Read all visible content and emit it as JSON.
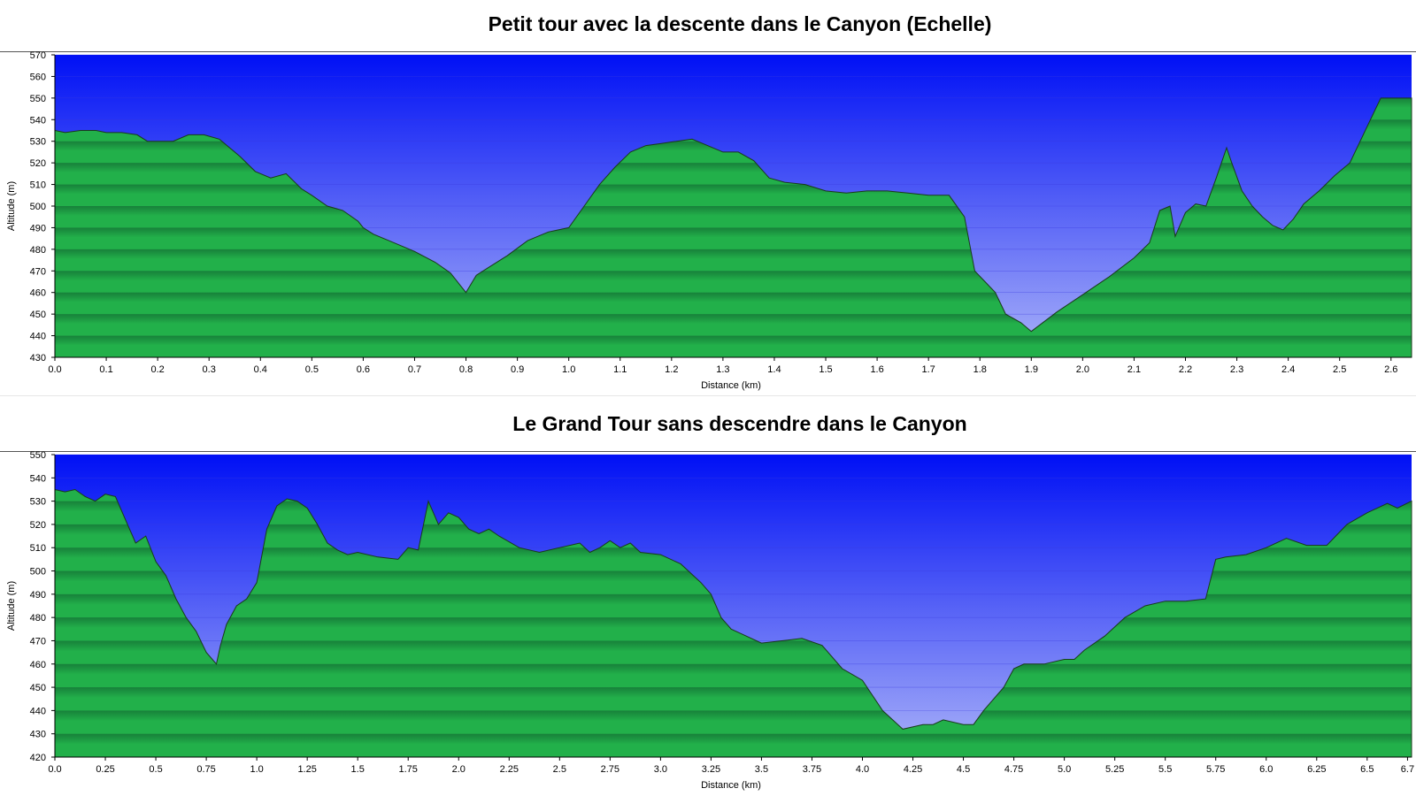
{
  "chart_data": [
    {
      "type": "area",
      "title": "Petit tour avec la descente dans le Canyon (Echelle)",
      "xlabel": "Distance    (km)",
      "ylabel": "Altitude (m)",
      "xlim": [
        0,
        2.64
      ],
      "ylim": [
        430,
        570
      ],
      "xticks": [
        "0.0",
        "0.1",
        "0.2",
        "0.3",
        "0.4",
        "0.5",
        "0.6",
        "0.7",
        "0.8",
        "0.9",
        "1.0",
        "1.1",
        "1.2",
        "1.3",
        "1.4",
        "1.5",
        "1.6",
        "1.7",
        "1.8",
        "1.9",
        "2.0",
        "2.1",
        "2.2",
        "2.3",
        "2.4",
        "2.5",
        "2.6"
      ],
      "yticks": [
        430,
        440,
        450,
        460,
        470,
        480,
        490,
        500,
        510,
        520,
        530,
        540,
        550,
        560,
        570
      ],
      "grid": true,
      "colors": {
        "sky_top": "#0010f5",
        "sky_bottom": "#aab2f8",
        "terrain": "#22b04a",
        "terrain_band": "#17803a"
      },
      "series": [
        {
          "x": [
            0,
            0.02,
            0.05,
            0.08,
            0.1,
            0.13,
            0.16,
            0.18,
            0.2,
            0.23,
            0.26,
            0.29,
            0.32,
            0.34,
            0.36,
            0.39,
            0.42,
            0.45,
            0.48,
            0.5,
            0.53,
            0.56,
            0.59,
            0.6,
            0.62,
            0.65,
            0.7,
            0.74,
            0.77,
            0.79,
            0.8,
            0.82,
            0.84,
            0.88,
            0.92,
            0.96,
            1.0,
            1.03,
            1.06,
            1.09,
            1.12,
            1.15,
            1.18,
            1.21,
            1.24,
            1.27,
            1.3,
            1.33,
            1.36,
            1.39,
            1.42,
            1.46,
            1.5,
            1.54,
            1.58,
            1.62,
            1.66,
            1.7,
            1.74,
            1.77,
            1.79,
            1.81,
            1.83,
            1.85,
            1.88,
            1.9,
            1.95,
            2.0,
            2.05,
            2.1,
            2.13,
            2.15,
            2.17,
            2.18,
            2.2,
            2.22,
            2.24,
            2.26,
            2.28,
            2.29,
            2.31,
            2.33,
            2.35,
            2.37,
            2.39,
            2.41,
            2.43,
            2.46,
            2.49,
            2.52,
            2.54,
            2.56,
            2.58,
            2.6,
            2.64
          ],
          "y": [
            535,
            534,
            535,
            535,
            534,
            534,
            533,
            530,
            530,
            530,
            533,
            533,
            531,
            527,
            523,
            516,
            513,
            515,
            508,
            505,
            500,
            498,
            493,
            490,
            487,
            484,
            479,
            474,
            469,
            463,
            460,
            468,
            471,
            477,
            484,
            488,
            490,
            500,
            510,
            518,
            525,
            528,
            529,
            530,
            531,
            528,
            525,
            525,
            521,
            513,
            511,
            510,
            507,
            506,
            507,
            507,
            506,
            505,
            505,
            495,
            470,
            465,
            460,
            450,
            446,
            442,
            451,
            459,
            467,
            476,
            483,
            498,
            500,
            486,
            497,
            501,
            500,
            513,
            527,
            520,
            507,
            500,
            495,
            491,
            489,
            494,
            501,
            507,
            514,
            520,
            530,
            540,
            550,
            550,
            550
          ]
        }
      ]
    },
    {
      "type": "area",
      "title": "Le Grand Tour sans descendre dans le Canyon",
      "xlabel": "Distance    (km)",
      "ylabel": "Altitude (m)",
      "xlim": [
        0,
        6.72
      ],
      "ylim": [
        420,
        550
      ],
      "xticks": [
        "0.0",
        "0.25",
        "0.5",
        "0.75",
        "1.0",
        "1.25",
        "1.5",
        "1.75",
        "2.0",
        "2.25",
        "2.5",
        "2.75",
        "3.0",
        "3.25",
        "3.5",
        "3.75",
        "4.0",
        "4.25",
        "4.5",
        "4.75",
        "5.0",
        "5.25",
        "5.5",
        "5.75",
        "6.0",
        "6.25",
        "6.5",
        "6.7"
      ],
      "yticks": [
        420,
        430,
        440,
        450,
        460,
        470,
        480,
        490,
        500,
        510,
        520,
        530,
        540,
        550
      ],
      "grid": true,
      "colors": {
        "sky_top": "#0010f5",
        "sky_bottom": "#aab2f8",
        "terrain": "#22b04a",
        "terrain_band": "#17803a"
      },
      "series": [
        {
          "x": [
            0,
            0.05,
            0.1,
            0.15,
            0.2,
            0.25,
            0.3,
            0.35,
            0.4,
            0.45,
            0.5,
            0.55,
            0.6,
            0.65,
            0.7,
            0.75,
            0.8,
            0.82,
            0.85,
            0.9,
            0.95,
            1.0,
            1.05,
            1.1,
            1.15,
            1.2,
            1.25,
            1.3,
            1.35,
            1.4,
            1.45,
            1.5,
            1.6,
            1.7,
            1.75,
            1.8,
            1.85,
            1.9,
            1.95,
            2.0,
            2.05,
            2.1,
            2.15,
            2.2,
            2.3,
            2.4,
            2.5,
            2.6,
            2.65,
            2.7,
            2.75,
            2.8,
            2.85,
            2.9,
            3.0,
            3.1,
            3.2,
            3.25,
            3.3,
            3.35,
            3.4,
            3.5,
            3.6,
            3.7,
            3.8,
            3.9,
            4.0,
            4.1,
            4.2,
            4.3,
            4.35,
            4.4,
            4.5,
            4.55,
            4.6,
            4.7,
            4.75,
            4.8,
            4.9,
            5.0,
            5.05,
            5.1,
            5.2,
            5.3,
            5.4,
            5.5,
            5.6,
            5.7,
            5.75,
            5.8,
            5.9,
            6.0,
            6.1,
            6.2,
            6.3,
            6.4,
            6.5,
            6.6,
            6.65,
            6.72
          ],
          "y": [
            535,
            534,
            535,
            532,
            530,
            533,
            532,
            522,
            512,
            515,
            504,
            498,
            488,
            480,
            474,
            465,
            460,
            468,
            477,
            485,
            488,
            495,
            518,
            528,
            531,
            530,
            527,
            520,
            512,
            509,
            507,
            508,
            506,
            505,
            510,
            509,
            530,
            520,
            525,
            523,
            518,
            516,
            518,
            515,
            510,
            508,
            510,
            512,
            508,
            510,
            513,
            510,
            512,
            508,
            507,
            503,
            495,
            490,
            480,
            475,
            473,
            469,
            470,
            471,
            468,
            458,
            453,
            440,
            432,
            434,
            434,
            436,
            434,
            434,
            440,
            450,
            458,
            460,
            460,
            462,
            462,
            466,
            472,
            480,
            485,
            487,
            487,
            488,
            505,
            506,
            507,
            510,
            514,
            511,
            511,
            520,
            525,
            529,
            527,
            530
          ]
        }
      ]
    }
  ]
}
